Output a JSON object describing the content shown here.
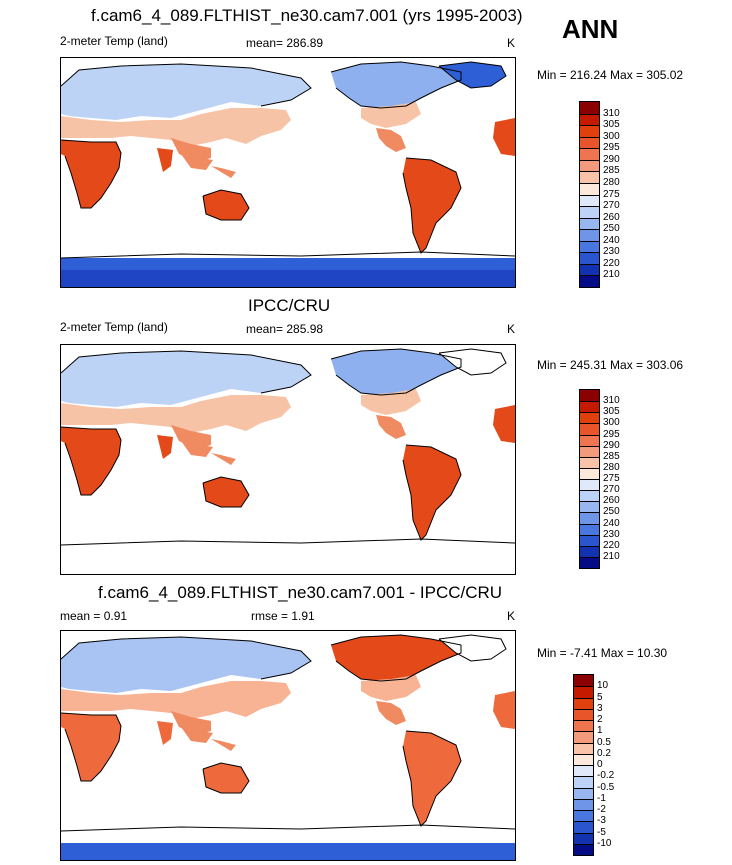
{
  "season": "ANN",
  "panels": [
    {
      "title": "f.cam6_4_089.FLTHIST_ne30.cam7.001 (yrs 1995-2003)",
      "left_label": "2-meter Temp (land)",
      "center_label": "mean= 286.89",
      "units": "K",
      "minmax": "Min = 216.24 Max = 305.02",
      "scale": "abs",
      "fill_key": "model"
    },
    {
      "title": "IPCC/CRU",
      "left_label": "2-meter Temp (land)",
      "center_label": "mean= 285.98",
      "units": "K",
      "minmax": "Min = 245.31 Max = 303.06",
      "scale": "abs",
      "fill_key": "obs"
    },
    {
      "title": "f.cam6_4_089.FLTHIST_ne30.cam7.001 - IPCC/CRU",
      "left_label": "mean =   0.91",
      "center_label": "rmse =   1.91",
      "units": "K",
      "minmax": "Min =  -7.41 Max =  10.30",
      "scale": "diff",
      "fill_key": "diff"
    }
  ],
  "colorbars": {
    "abs": {
      "labels": [
        "310",
        "305",
        "300",
        "295",
        "290",
        "285",
        "280",
        "275",
        "270",
        "260",
        "250",
        "240",
        "230",
        "220",
        "210"
      ],
      "colors": [
        "#8b0000",
        "#c41a00",
        "#e0400e",
        "#e8552a",
        "#ee7550",
        "#f3997c",
        "#f8c3a8",
        "#fde8dc",
        "#dfe9fa",
        "#bcd2f6",
        "#98b6f0",
        "#6e95e8",
        "#4a76df",
        "#2a55cf",
        "#1232b0",
        "#050a85"
      ]
    },
    "diff": {
      "labels": [
        "10",
        "5",
        "3",
        "2",
        "1",
        "0.5",
        "0.2",
        "0",
        "-0.2",
        "-0.5",
        "-1",
        "-2",
        "-3",
        "-5",
        "-10"
      ],
      "colors": [
        "#8b0000",
        "#c41a00",
        "#e0400e",
        "#e8552a",
        "#ee7550",
        "#f3997c",
        "#f8c3a8",
        "#fde8dc",
        "#dfe9fa",
        "#bcd2f6",
        "#98b6f0",
        "#6e95e8",
        "#4a76df",
        "#2a55cf",
        "#1232b0",
        "#050a85"
      ]
    }
  },
  "fills": {
    "model": {
      "hot": "#e4491a",
      "warm": "#f08a60",
      "mild": "#f7c3a6",
      "cool": "#bdd3f6",
      "cold": "#8fb0ee",
      "ice": "#2f5fd6",
      "deep": "#1f45c4"
    },
    "obs": {
      "hot": "#e4491a",
      "warm": "#f08a60",
      "mild": "#f7c3a6",
      "cool": "#bdd3f6",
      "cold": "#8fb0ee",
      "ice": "#ffffff",
      "deep": "#ffffff"
    },
    "diff": {
      "hot": "#ee6a3c",
      "warm": "#f08a60",
      "mild": "#f7b394",
      "cool": "#a9c3f3",
      "cold": "#e4491a",
      "ice": "#ffffff",
      "deep": "#2f5fd6"
    }
  }
}
